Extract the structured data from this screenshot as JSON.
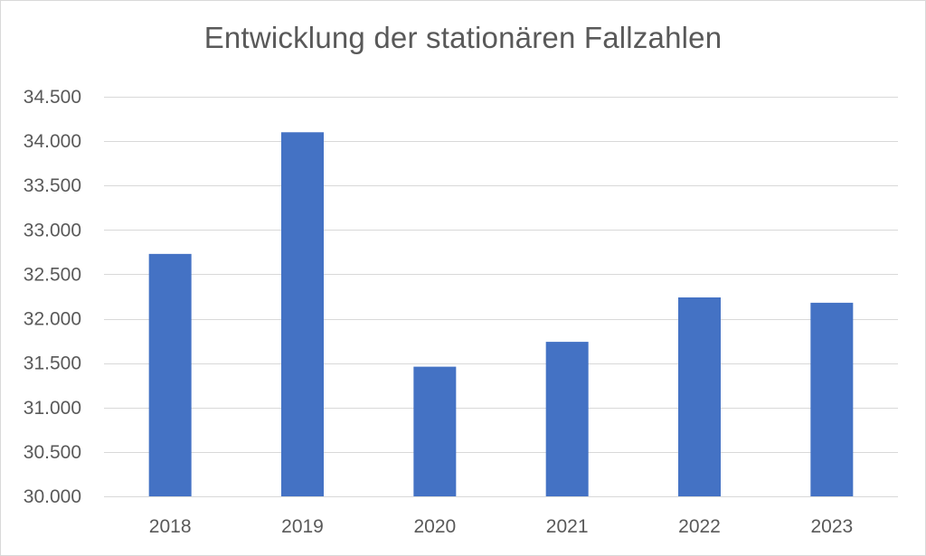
{
  "chart_data": {
    "type": "bar",
    "title": "Entwicklung der stationären Fallzahlen",
    "xlabel": "",
    "ylabel": "",
    "categories": [
      "2018",
      "2019",
      "2020",
      "2021",
      "2022",
      "2023"
    ],
    "values": [
      32730,
      34100,
      31460,
      31740,
      32240,
      32180
    ],
    "ylim": [
      30000,
      34500
    ],
    "yticks": [
      30000,
      30500,
      31000,
      31500,
      32000,
      32500,
      33000,
      33500,
      34000,
      34500
    ],
    "ytick_labels": [
      "30.000",
      "30.500",
      "31.000",
      "31.500",
      "32.000",
      "32.500",
      "33.000",
      "33.500",
      "34.000",
      "34.500"
    ],
    "grid": true,
    "legend": "none",
    "bar_color": "#4472C4",
    "grid_color": "#D9D9D9"
  }
}
